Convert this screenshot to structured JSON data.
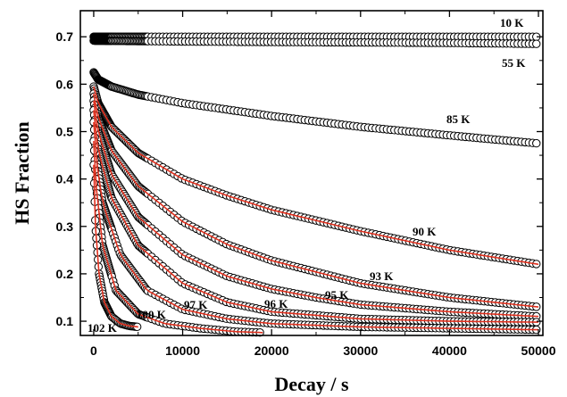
{
  "chart_data": {
    "type": "scatter",
    "xlabel": "Decay / s",
    "ylabel": "HS Fraction",
    "xlim": [
      -1500,
      50500
    ],
    "ylim": [
      0.07,
      0.755
    ],
    "x_ticks": [
      0,
      10000,
      20000,
      30000,
      40000,
      50000
    ],
    "y_ticks": [
      0.1,
      0.2,
      0.3,
      0.4,
      0.5,
      0.6,
      0.7
    ],
    "y_tick_labels": [
      "0.1",
      "0.2",
      "0.3",
      "0.4",
      "0.5",
      "0.6",
      "0.7"
    ],
    "grid": false,
    "marker": "open-circle",
    "fit_color": "#e0301e",
    "series": [
      {
        "name": "10 K",
        "x": [
          0,
          10000,
          20000,
          30000,
          40000,
          50000
        ],
        "y": [
          0.7,
          0.7,
          0.7,
          0.7,
          0.7,
          0.7
        ],
        "fit": false
      },
      {
        "name": "55 K",
        "x": [
          0,
          10000,
          20000,
          30000,
          40000,
          50000
        ],
        "y": [
          0.692,
          0.69,
          0.689,
          0.688,
          0.687,
          0.685
        ],
        "fit": false
      },
      {
        "name": "85 K",
        "x": [
          0,
          500,
          2000,
          5000,
          10000,
          20000,
          30000,
          40000,
          50000
        ],
        "y": [
          0.625,
          0.61,
          0.595,
          0.578,
          0.56,
          0.533,
          0.51,
          0.492,
          0.475
        ],
        "fit": false
      },
      {
        "name": "90 K",
        "x": [
          0,
          500,
          2000,
          5000,
          10000,
          15000,
          20000,
          30000,
          40000,
          50000
        ],
        "y": [
          0.595,
          0.56,
          0.51,
          0.455,
          0.4,
          0.365,
          0.335,
          0.29,
          0.25,
          0.22
        ],
        "fit": true
      },
      {
        "name": "93 K",
        "x": [
          0,
          500,
          2000,
          5000,
          10000,
          15000,
          20000,
          30000,
          40000,
          50000
        ],
        "y": [
          0.58,
          0.53,
          0.46,
          0.385,
          0.31,
          0.262,
          0.228,
          0.18,
          0.15,
          0.13
        ],
        "fit": true
      },
      {
        "name": "95 K",
        "x": [
          0,
          500,
          2000,
          5000,
          10000,
          15000,
          20000,
          25000,
          30000,
          40000,
          50000
        ],
        "y": [
          0.565,
          0.5,
          0.41,
          0.32,
          0.24,
          0.195,
          0.168,
          0.15,
          0.135,
          0.12,
          0.11
        ],
        "fit": true
      },
      {
        "name": "96 K",
        "x": [
          0,
          500,
          2000,
          5000,
          10000,
          15000,
          20000,
          30000,
          40000,
          50000
        ],
        "y": [
          0.545,
          0.46,
          0.36,
          0.26,
          0.18,
          0.14,
          0.12,
          0.105,
          0.1,
          0.098
        ],
        "fit": true
      },
      {
        "name": "97 K",
        "x": [
          0,
          300,
          1000,
          3000,
          6000,
          10000,
          15000,
          20000,
          30000,
          40000,
          50000
        ],
        "y": [
          0.52,
          0.44,
          0.35,
          0.24,
          0.165,
          0.125,
          0.105,
          0.095,
          0.088,
          0.085,
          0.082
        ],
        "fit": true
      },
      {
        "name": "100 K",
        "x": [
          0,
          300,
          1000,
          2500,
          5000,
          8000,
          12000,
          16000,
          19000
        ],
        "y": [
          0.48,
          0.38,
          0.26,
          0.165,
          0.115,
          0.095,
          0.085,
          0.078,
          0.076
        ],
        "fit": true
      },
      {
        "name": "102 K",
        "x": [
          0,
          200,
          600,
          1200,
          2000,
          3000,
          4000,
          5000
        ],
        "y": [
          0.43,
          0.3,
          0.2,
          0.14,
          0.11,
          0.095,
          0.09,
          0.088
        ],
        "fit": true
      }
    ]
  },
  "curve_labels": [
    {
      "series": "10 K",
      "text": "10 K"
    },
    {
      "series": "55 K",
      "text": "55 K"
    },
    {
      "series": "85 K",
      "text": "85 K"
    },
    {
      "series": "90 K",
      "text": "90 K"
    },
    {
      "series": "93 K",
      "text": "93 K"
    },
    {
      "series": "95 K",
      "text": "95 K"
    },
    {
      "series": "96 K",
      "text": "96 K"
    },
    {
      "series": "97 K",
      "text": "97 K"
    },
    {
      "series": "100 K",
      "text": "100 K"
    },
    {
      "series": "102 K",
      "text": "102 K"
    }
  ]
}
